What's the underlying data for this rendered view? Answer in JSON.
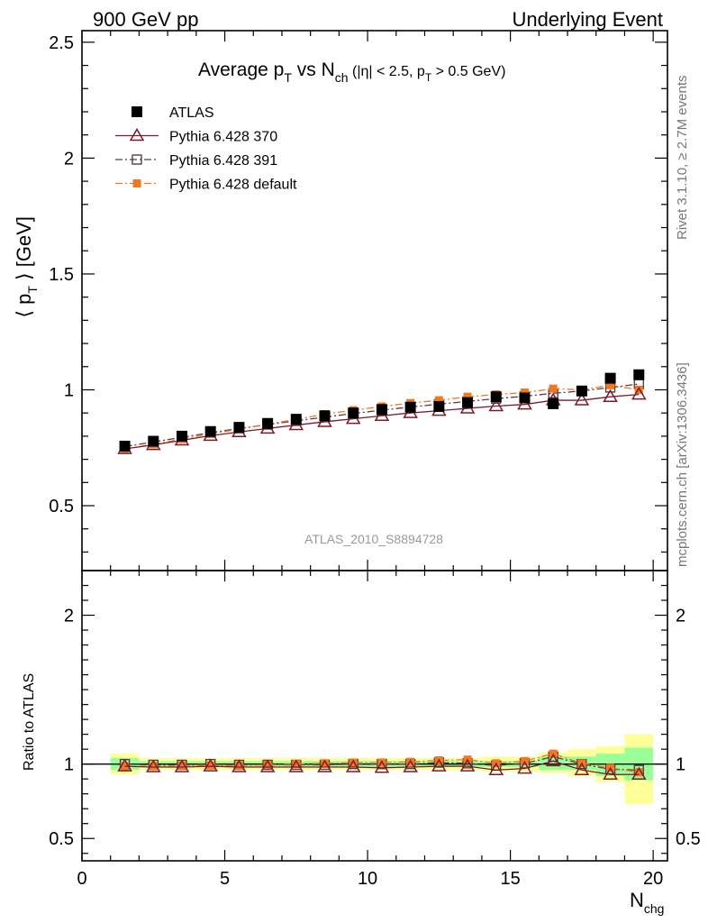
{
  "header": {
    "left": "900 GeV pp",
    "right": "Underlying Event"
  },
  "side": {
    "rivet": "Rivet 3.1.10, ≥ 2.7M events",
    "mcplots": "mcplots.cern.ch [arXiv:1306.3436]"
  },
  "watermark": "ATLAS_2010_S8894728",
  "title": {
    "p1": "Average p",
    "sub1": "T",
    "p2": " vs N",
    "sub2": "ch",
    "p3": " (|η| < 2.5, p",
    "sub3": "T",
    "p4": " > 0.5 GeV)"
  },
  "ylabel_top": {
    "a": "⟨ p",
    "sub": "T",
    "b": " ⟩ [GeV]"
  },
  "ylabel_bottom": "Ratio to ATLAS",
  "xlabel": {
    "a": "N",
    "sub": "chg"
  },
  "chart_data": [
    {
      "type": "scatter",
      "panel": "main",
      "xlim": [
        0,
        20.5
      ],
      "ylim": [
        0.22,
        2.55
      ],
      "x_ticks": [
        0,
        5,
        10,
        15,
        20
      ],
      "x_tick_labels": [
        "0",
        "5",
        "10",
        "15",
        "20"
      ],
      "y_ticks": [
        0.5,
        1,
        1.5,
        2,
        2.5
      ],
      "y_tick_labels": [
        "0.5",
        "1",
        "1.5",
        "2",
        "2.5"
      ],
      "x": [
        1.5,
        2.5,
        3.5,
        4.5,
        5.5,
        6.5,
        7.5,
        8.5,
        9.5,
        10.5,
        11.5,
        12.5,
        13.5,
        14.5,
        15.5,
        16.5,
        17.5,
        18.5,
        19.5
      ],
      "series": [
        {
          "name": "ATLAS",
          "color": "#000000",
          "marker": "filled-square",
          "values": [
            0.757,
            0.778,
            0.8,
            0.82,
            0.838,
            0.855,
            0.873,
            0.888,
            0.9,
            0.915,
            0.925,
            0.928,
            0.945,
            0.97,
            0.965,
            0.94,
            0.995,
            1.05,
            1.065
          ]
        },
        {
          "name": "Pythia 6.428 370",
          "color": "#7b1a2a",
          "marker": "open-triangle",
          "line": "solid",
          "values": [
            0.745,
            0.762,
            0.782,
            0.802,
            0.818,
            0.833,
            0.848,
            0.862,
            0.875,
            0.888,
            0.9,
            0.91,
            0.92,
            0.93,
            0.937,
            0.955,
            0.955,
            0.97,
            0.98
          ]
        },
        {
          "name": "Pythia 6.428 391",
          "color": "#5a3a4a",
          "marker": "open-square",
          "line": "dash-dot",
          "values": [
            0.755,
            0.775,
            0.795,
            0.815,
            0.833,
            0.85,
            0.866,
            0.882,
            0.898,
            0.912,
            0.926,
            0.938,
            0.95,
            0.962,
            0.972,
            0.985,
            0.995,
            1.01,
            1.025
          ]
        },
        {
          "name": "Pythia 6.428 default",
          "color": "#f07820",
          "marker": "filled-square-small",
          "line": "dash-dot",
          "values": [
            0.745,
            0.765,
            0.787,
            0.81,
            0.83,
            0.852,
            0.872,
            0.895,
            0.912,
            0.928,
            0.943,
            0.955,
            0.97,
            0.98,
            0.988,
            1.005,
            1.0,
            1.02,
            1.0
          ]
        }
      ]
    },
    {
      "type": "scatter",
      "panel": "ratio",
      "ylabel": "Ratio to ATLAS",
      "xlim": [
        0,
        20.5
      ],
      "ylim": [
        0.35,
        2.3
      ],
      "y_ticks": [
        0.5,
        1,
        2
      ],
      "y_tick_labels": [
        "0.5",
        "1",
        "2"
      ],
      "bins": [
        [
          1,
          2
        ],
        [
          2,
          3
        ],
        [
          3,
          4
        ],
        [
          4,
          5
        ],
        [
          5,
          6
        ],
        [
          6,
          7
        ],
        [
          7,
          8
        ],
        [
          8,
          9
        ],
        [
          9,
          10
        ],
        [
          10,
          11
        ],
        [
          11,
          12
        ],
        [
          12,
          13
        ],
        [
          13,
          14
        ],
        [
          14,
          15
        ],
        [
          15,
          16
        ],
        [
          16,
          17
        ],
        [
          17,
          18
        ],
        [
          18,
          19
        ],
        [
          19,
          20
        ]
      ],
      "band_green": [
        [
          0.96,
          1.04
        ],
        [
          0.98,
          1.02
        ],
        [
          0.98,
          1.02
        ],
        [
          0.98,
          1.02
        ],
        [
          0.98,
          1.02
        ],
        [
          0.98,
          1.02
        ],
        [
          0.98,
          1.02
        ],
        [
          0.98,
          1.02
        ],
        [
          0.98,
          1.02
        ],
        [
          0.98,
          1.02
        ],
        [
          0.98,
          1.02
        ],
        [
          0.98,
          1.02
        ],
        [
          0.98,
          1.02
        ],
        [
          0.98,
          1.02
        ],
        [
          0.98,
          1.02
        ],
        [
          0.96,
          1.05
        ],
        [
          0.96,
          1.05
        ],
        [
          0.92,
          1.07
        ],
        [
          0.89,
          1.11
        ]
      ],
      "band_yellow": [
        [
          0.93,
          1.07
        ],
        [
          0.96,
          1.04
        ],
        [
          0.96,
          1.04
        ],
        [
          0.96,
          1.04
        ],
        [
          0.96,
          1.04
        ],
        [
          0.96,
          1.04
        ],
        [
          0.96,
          1.04
        ],
        [
          0.96,
          1.04
        ],
        [
          0.96,
          1.04
        ],
        [
          0.96,
          1.04
        ],
        [
          0.96,
          1.04
        ],
        [
          0.96,
          1.04
        ],
        [
          0.96,
          1.04
        ],
        [
          0.95,
          1.05
        ],
        [
          0.95,
          1.05
        ],
        [
          0.94,
          1.08
        ],
        [
          0.92,
          1.1
        ],
        [
          0.88,
          1.12
        ],
        [
          0.73,
          1.2
        ]
      ],
      "x": [
        1.5,
        2.5,
        3.5,
        4.5,
        5.5,
        6.5,
        7.5,
        8.5,
        9.5,
        10.5,
        11.5,
        12.5,
        13.5,
        14.5,
        15.5,
        16.5,
        17.5,
        18.5,
        19.5
      ],
      "series": [
        {
          "name": "ATLAS",
          "color": "#000000",
          "values": [
            1,
            1,
            1,
            1,
            1,
            1,
            1,
            1,
            1,
            1,
            1,
            1,
            1,
            1,
            1,
            1,
            1,
            1,
            1
          ]
        },
        {
          "name": "Pythia 6.428 370",
          "color": "#7b1a2a",
          "values": [
            0.985,
            0.98,
            0.98,
            0.985,
            0.98,
            0.98,
            0.98,
            0.98,
            0.98,
            0.975,
            0.98,
            0.985,
            0.985,
            0.96,
            0.97,
            1.02,
            0.96,
            0.93,
            0.93
          ]
        },
        {
          "name": "Pythia 6.428 391",
          "color": "#5a3a4a",
          "values": [
            1.0,
            0.995,
            0.995,
            1.0,
            0.995,
            0.995,
            0.995,
            0.995,
            1.0,
            1.0,
            1.0,
            1.01,
            1.005,
            0.99,
            1.005,
            1.05,
            1.0,
            0.965,
            0.96
          ]
        },
        {
          "name": "Pythia 6.428 default",
          "color": "#f07820",
          "values": [
            0.985,
            0.985,
            0.99,
            0.99,
            0.99,
            0.995,
            1.0,
            1.005,
            1.01,
            1.01,
            1.015,
            1.025,
            1.03,
            1.005,
            1.02,
            1.07,
            1.005,
            0.975,
            0.945
          ]
        }
      ]
    }
  ],
  "legend": {
    "placement": "top-left",
    "entries": [
      "ATLAS",
      "Pythia 6.428 370",
      "Pythia 6.428 391",
      "Pythia 6.428 default"
    ]
  }
}
